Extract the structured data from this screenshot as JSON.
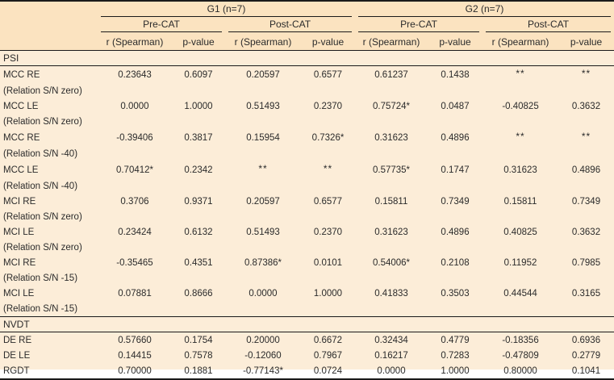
{
  "colors": {
    "header_bg": "#fbe3c0",
    "body_bg": "#fcedd8",
    "rule": "#1a1a1a",
    "text": "#2b2b2b"
  },
  "table": {
    "groups": [
      {
        "label": "G1 (n=7)"
      },
      {
        "label": "G2 (n=7)"
      }
    ],
    "conditions": [
      "Pre-CAT",
      "Post-CAT",
      "Pre-CAT",
      "Post-CAT"
    ],
    "measure_headers": [
      "r (Spearman)",
      "p-value",
      "r (Spearman)",
      "p-value",
      "r (Spearman)",
      "p-value",
      "r (Spearman)",
      "p-value"
    ],
    "sections": [
      {
        "title": "PSI",
        "rows": [
          {
            "label": "MCC RE",
            "sublabel": "(Relation S/N zero)",
            "values": [
              "0.23643",
              "0.6097",
              "0.20597",
              "0.6577",
              "0.61237",
              "0.1438",
              "**",
              "**"
            ]
          },
          {
            "label": "MCC LE",
            "sublabel": "(Relation S/N zero)",
            "values": [
              "0.0000",
              "1.0000",
              "0.51493",
              "0.2370",
              "0.75724*",
              "0.0487",
              "-0.40825",
              "0.3632"
            ]
          },
          {
            "label": "MCC RE",
            "sublabel": "(Relation S/N -40)",
            "values": [
              "-0.39406",
              "0.3817",
              "0.15954",
              "0.7326*",
              "0.31623",
              "0.4896",
              "**",
              "**"
            ]
          },
          {
            "label": "MCC LE",
            "sublabel": "(Relation S/N -40)",
            "values": [
              "0.70412*",
              "0.2342",
              "**",
              "**",
              "0.57735*",
              "0.1747",
              "0.31623",
              "0.4896"
            ]
          },
          {
            "label": "MCI RE",
            "sublabel": "(Relation S/N zero)",
            "values": [
              "0.3706",
              "0.9371",
              "0.20597",
              "0.6577",
              "0.15811",
              "0.7349",
              "0.15811",
              "0.7349"
            ]
          },
          {
            "label": "MCI LE",
            "sublabel": "(Relation S/N zero)",
            "values": [
              "0.23424",
              "0.6132",
              "0.51493",
              "0.2370",
              "0.31623",
              "0.4896",
              "0.40825",
              "0.3632"
            ]
          },
          {
            "label": "MCI RE",
            "sublabel": "(Relation S/N -15)",
            "values": [
              "-0.35465",
              "0.4351",
              "0.87386*",
              "0.0101",
              "0.54006*",
              "0.2108",
              "0.11952",
              "0.7985"
            ]
          },
          {
            "label": "MCI LE",
            "sublabel": "(Relation S/N -15)",
            "values": [
              "0.07881",
              "0.8666",
              "0.0000",
              "1.0000",
              "0.41833",
              "0.3503",
              "0.44544",
              "0.3165"
            ]
          }
        ]
      },
      {
        "title": "NVDT",
        "rows": [
          {
            "label": "DE RE",
            "sublabel": "",
            "values": [
              "0.57660",
              "0.1754",
              "0.20000",
              "0.6672",
              "0.32434",
              "0.4779",
              "-0.18356",
              "0.6936"
            ]
          },
          {
            "label": "DE LE",
            "sublabel": "",
            "values": [
              "0.14415",
              "0.7578",
              "-0.12060",
              "0.7967",
              "0.16217",
              "0.7283",
              "-0.47809",
              "0.2779"
            ]
          },
          {
            "label": "RGDT",
            "sublabel": "",
            "values": [
              "0.70000",
              "0.1881",
              "-0.77143*",
              "0.0724",
              "0.0000",
              "1.0000",
              "0.80000",
              "0.1041"
            ]
          }
        ]
      }
    ]
  }
}
